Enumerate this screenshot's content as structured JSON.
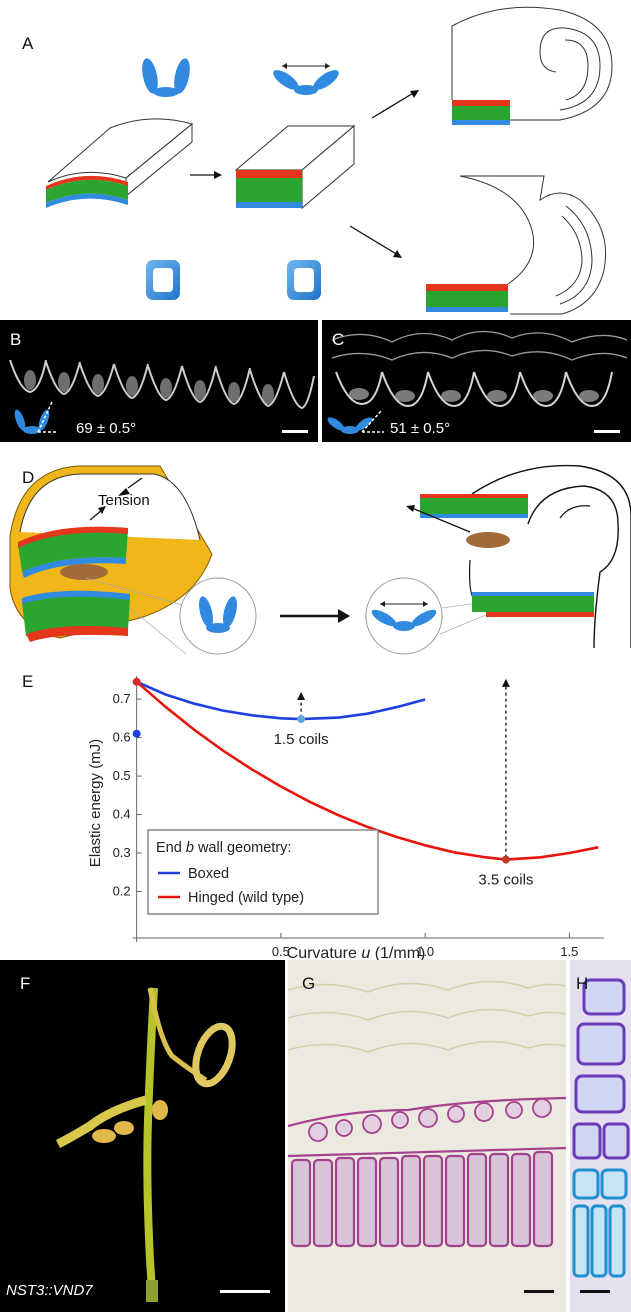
{
  "panels": {
    "a": {
      "label": "A"
    },
    "b": {
      "label": "B",
      "angle": "69 ± 0.5°"
    },
    "c": {
      "label": "C",
      "angle": "51 ± 0.5°"
    },
    "d": {
      "label": "D",
      "tension": "Tension"
    },
    "e": {
      "label": "E"
    },
    "f": {
      "label": "F",
      "caption": "NST3::VND7"
    },
    "g": {
      "label": "G"
    },
    "h": {
      "label": "H"
    }
  },
  "chart_data": {
    "type": "line",
    "xlabel_prefix": "Curvature",
    "xlabel_var": "u",
    "xlabel_unit": "(1/mm)",
    "ylabel": "Elastic energy  (mJ)",
    "xlim": [
      -0.03,
      1.62
    ],
    "ylim": [
      0.1,
      0.76
    ],
    "xticks": [
      "0.5",
      "1.0",
      "1.5"
    ],
    "xtick_values": [
      0.5,
      1.0,
      1.5
    ],
    "yticks": [
      "0.2",
      "0.3",
      "0.4",
      "0.5",
      "0.6",
      "0.7"
    ],
    "ytick_values": [
      0.2,
      0.3,
      0.4,
      0.5,
      0.6,
      0.7
    ],
    "legend_title_prefix": "End",
    "legend_title_var": "b",
    "legend_title_suffix": "wall geometry:",
    "series": [
      {
        "name": "Boxed",
        "color": "#1f3fe0",
        "x": [
          0,
          0.1,
          0.2,
          0.3,
          0.4,
          0.5,
          0.57,
          0.7,
          0.8,
          0.9,
          1.0
        ],
        "y": [
          0.745,
          0.712,
          0.688,
          0.67,
          0.658,
          0.65,
          0.648,
          0.652,
          0.662,
          0.679,
          0.699
        ]
      },
      {
        "name": "Hinged  (wild type)",
        "color": "#e8140e",
        "x": [
          0,
          0.1,
          0.2,
          0.3,
          0.4,
          0.5,
          0.6,
          0.7,
          0.8,
          0.9,
          1.0,
          1.1,
          1.2,
          1.28,
          1.4,
          1.5,
          1.6
        ],
        "y": [
          0.745,
          0.68,
          0.62,
          0.566,
          0.517,
          0.473,
          0.433,
          0.398,
          0.368,
          0.342,
          0.32,
          0.302,
          0.29,
          0.283,
          0.289,
          0.3,
          0.315
        ]
      }
    ],
    "points": [
      {
        "x": 0,
        "y": 0.745,
        "color": "#d42a2a"
      },
      {
        "x": 0,
        "y": 0.61,
        "color": "#1f3fe0"
      },
      {
        "x": 0.57,
        "y": 0.648,
        "color": "#5fa8d8"
      },
      {
        "x": 1.28,
        "y": 0.283,
        "color": "#c0392b"
      }
    ],
    "annotations": [
      {
        "text": "1.5  coils",
        "x": 0.57,
        "y": 0.62
      },
      {
        "text": "3.5  coils",
        "x": 1.28,
        "y": 0.255
      }
    ],
    "arrows": [
      {
        "x": 0.57,
        "y0": 0.652,
        "y1": 0.708
      },
      {
        "x": 1.28,
        "y0": 0.288,
        "y1": 0.742
      }
    ]
  }
}
